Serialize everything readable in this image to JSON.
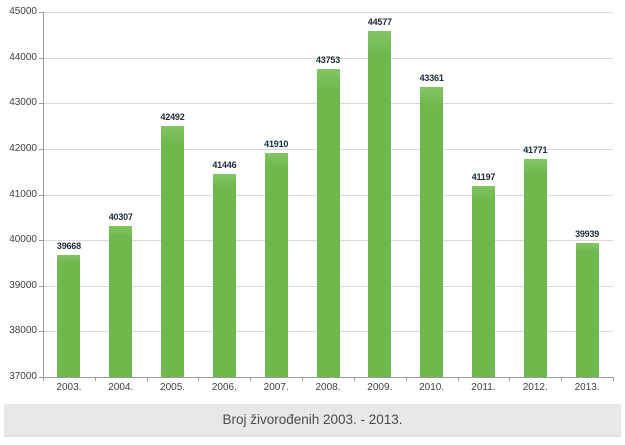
{
  "chart_data": {
    "type": "bar",
    "title": "Broj živorođenih 2003. - 2013.",
    "categories": [
      "2003.",
      "2004.",
      "2005.",
      "2006.",
      "2007.",
      "2008.",
      "2009.",
      "2010.",
      "2011.",
      "2012.",
      "2013."
    ],
    "values": [
      39668,
      40307,
      42492,
      41446,
      41910,
      43753,
      44577,
      43361,
      41197,
      41771,
      39939
    ],
    "ylim": [
      37000,
      45000
    ],
    "yticks": [
      37000,
      38000,
      39000,
      40000,
      41000,
      42000,
      43000,
      44000,
      45000
    ],
    "grid": "horizontal",
    "legend": "none",
    "bar_color": "#6eb84c",
    "bar_highlight": "#84c566",
    "value_label_color": "#1e2b3b",
    "axis_color": "#9b9b9b",
    "gridline_color": "#d9d9d9",
    "tick_label_color": "#404040",
    "caption_bg": "#e8e8e8",
    "caption_text_color": "#4c4c4c"
  }
}
